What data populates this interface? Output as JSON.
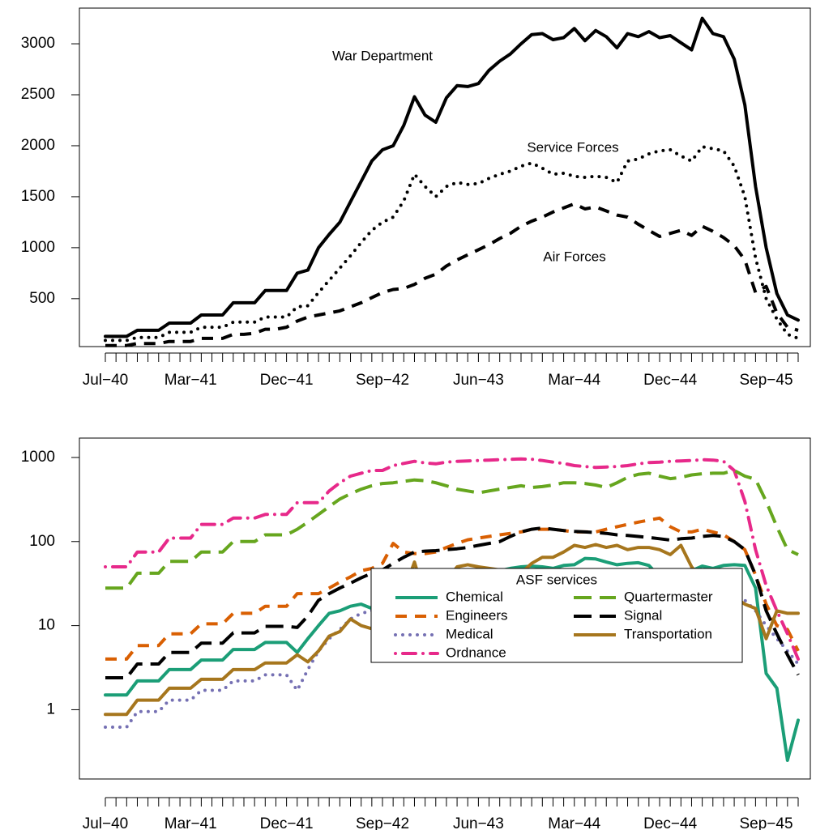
{
  "chart_data": [
    {
      "type": "line",
      "categories": [
        "Jul−40",
        null,
        null,
        null,
        null,
        null,
        null,
        null,
        "Mar−41",
        null,
        null,
        null,
        null,
        null,
        null,
        null,
        null,
        "Dec−41",
        null,
        null,
        null,
        null,
        null,
        null,
        null,
        null,
        "Sep−42",
        null,
        null,
        null,
        null,
        null,
        null,
        null,
        null,
        "Jun−43",
        null,
        null,
        null,
        null,
        null,
        null,
        null,
        null,
        "Mar−44",
        null,
        null,
        null,
        null,
        null,
        null,
        null,
        null,
        "Dec−44",
        null,
        null,
        null,
        null,
        null,
        null,
        null,
        null,
        "Sep−45",
        null,
        null,
        null
      ],
      "ylim": [
        30,
        3350
      ],
      "yticks": [
        500,
        1000,
        1500,
        2000,
        2500,
        3000
      ],
      "annotations": [
        "War Department",
        "Service Forces",
        "Air Forces"
      ],
      "series": [
        {
          "name": "War Department",
          "color": "#000000",
          "linestyle": "solid",
          "values": [
            130,
            130,
            130,
            190,
            190,
            190,
            260,
            260,
            260,
            340,
            340,
            340,
            460,
            460,
            460,
            580,
            580,
            580,
            750,
            780,
            1000,
            1130,
            1250,
            1450,
            1650,
            1850,
            1960,
            2000,
            2200,
            2480,
            2300,
            2230,
            2470,
            2590,
            2580,
            2610,
            2740,
            2830,
            2900,
            3000,
            3090,
            3100,
            3040,
            3060,
            3150,
            3030,
            3130,
            3070,
            2960,
            3100,
            3070,
            3120,
            3060,
            3080,
            3010,
            2940,
            3250,
            3100,
            3070,
            2850,
            2400,
            1600,
            1000,
            550,
            340,
            290
          ]
        },
        {
          "name": "Service Forces",
          "color": "#000000",
          "linestyle": "dotted",
          "values": [
            90,
            90,
            90,
            120,
            120,
            120,
            170,
            170,
            170,
            220,
            220,
            220,
            270,
            270,
            270,
            320,
            320,
            320,
            420,
            430,
            560,
            680,
            800,
            920,
            1050,
            1170,
            1250,
            1300,
            1460,
            1720,
            1600,
            1500,
            1600,
            1640,
            1620,
            1630,
            1680,
            1720,
            1750,
            1800,
            1830,
            1780,
            1720,
            1730,
            1700,
            1690,
            1700,
            1690,
            1640,
            1850,
            1870,
            1920,
            1950,
            1960,
            1900,
            1850,
            1990,
            1970,
            1950,
            1800,
            1500,
            900,
            500,
            300,
            150,
            110
          ]
        },
        {
          "name": "Air Forces",
          "color": "#000000",
          "linestyle": "dashed",
          "values": [
            40,
            40,
            40,
            60,
            60,
            60,
            80,
            80,
            80,
            110,
            110,
            110,
            150,
            150,
            160,
            200,
            200,
            220,
            280,
            320,
            340,
            360,
            380,
            420,
            460,
            510,
            560,
            590,
            600,
            640,
            700,
            740,
            820,
            880,
            930,
            980,
            1030,
            1090,
            1140,
            1210,
            1260,
            1300,
            1350,
            1390,
            1430,
            1380,
            1400,
            1360,
            1320,
            1300,
            1230,
            1170,
            1110,
            1140,
            1170,
            1120,
            1210,
            1160,
            1100,
            1020,
            880,
            560,
            620,
            360,
            220,
            190
          ]
        }
      ]
    },
    {
      "type": "line",
      "log_scale": true,
      "categories": [
        "Jul−40",
        null,
        null,
        null,
        null,
        null,
        null,
        null,
        "Mar−41",
        null,
        null,
        null,
        null,
        null,
        null,
        null,
        null,
        "Dec−41",
        null,
        null,
        null,
        null,
        null,
        null,
        null,
        null,
        "Sep−42",
        null,
        null,
        null,
        null,
        null,
        null,
        null,
        null,
        "Jun−43",
        null,
        null,
        null,
        null,
        null,
        null,
        null,
        null,
        "Mar−44",
        null,
        null,
        null,
        null,
        null,
        null,
        null,
        null,
        "Dec−44",
        null,
        null,
        null,
        null,
        null,
        null,
        null,
        null,
        "Sep−45",
        null,
        null,
        null
      ],
      "ylim": [
        0.15,
        1700
      ],
      "yticks": [
        1,
        10,
        100,
        1000
      ],
      "legend_title": "ASF services",
      "legend": "bottom-right",
      "series": [
        {
          "name": "Chemical",
          "color": "#1b9e77",
          "linestyle": "solid",
          "values": [
            1.5,
            1.5,
            1.5,
            2.2,
            2.2,
            2.2,
            3.0,
            3.0,
            3.0,
            3.9,
            3.9,
            3.9,
            5.2,
            5.2,
            5.2,
            6.3,
            6.3,
            6.3,
            4.8,
            7,
            10,
            14,
            15,
            17,
            18,
            16,
            21,
            22,
            23,
            34,
            31,
            31,
            33,
            34,
            32,
            27,
            34,
            45,
            48,
            50,
            51,
            50,
            48,
            52,
            53,
            63,
            62,
            57,
            53,
            55,
            56,
            52,
            38,
            43,
            46,
            45,
            51,
            48,
            52,
            53,
            52,
            28,
            2.7,
            1.8,
            0.25,
            0.75
          ]
        },
        {
          "name": "Engineers",
          "color": "#d95f02",
          "linestyle": "dashed",
          "values": [
            4,
            4,
            4,
            5.8,
            5.8,
            5.8,
            8,
            8,
            8,
            10.5,
            10.5,
            10.5,
            14,
            14,
            14,
            17,
            17,
            17,
            24,
            24,
            24,
            28,
            33,
            38,
            45,
            48,
            55,
            95,
            75,
            72,
            72,
            75,
            85,
            95,
            105,
            110,
            115,
            120,
            125,
            130,
            140,
            140,
            140,
            135,
            130,
            130,
            130,
            140,
            150,
            160,
            170,
            180,
            190,
            150,
            130,
            130,
            140,
            130,
            120,
            100,
            80,
            40,
            18,
            10,
            9,
            5
          ]
        },
        {
          "name": "Medical",
          "color": "#7570b3",
          "linestyle": "dotted",
          "values": [
            0.62,
            0.62,
            0.62,
            0.95,
            0.95,
            0.95,
            1.3,
            1.3,
            1.3,
            1.7,
            1.7,
            1.7,
            2.2,
            2.2,
            2.2,
            2.6,
            2.6,
            2.6,
            1.7,
            3,
            5,
            7,
            9,
            12,
            14,
            15,
            19,
            21,
            24,
            25,
            28,
            30,
            33,
            28,
            25,
            22,
            20,
            18,
            17,
            16,
            20,
            22,
            18,
            15,
            14,
            13,
            12,
            11.5,
            11,
            11.5,
            12,
            13,
            14,
            15,
            16,
            18,
            20,
            24,
            26,
            23,
            20,
            15,
            10,
            7,
            5,
            3.5
          ]
        },
        {
          "name": "Ordnance",
          "color": "#e7298a",
          "linestyle": "dotdash",
          "values": [
            50,
            50,
            50,
            75,
            75,
            75,
            110,
            110,
            110,
            160,
            160,
            160,
            190,
            190,
            190,
            210,
            210,
            210,
            290,
            290,
            290,
            400,
            500,
            600,
            650,
            700,
            700,
            800,
            850,
            900,
            860,
            840,
            880,
            900,
            910,
            920,
            930,
            940,
            950,
            960,
            950,
            920,
            880,
            850,
            800,
            780,
            760,
            770,
            780,
            800,
            840,
            870,
            880,
            900,
            910,
            920,
            940,
            930,
            900,
            700,
            300,
            80,
            30,
            15,
            8,
            4
          ]
        },
        {
          "name": "Quartermaster",
          "color": "#66a61e",
          "linestyle": "longdash",
          "values": [
            28,
            28,
            28,
            42,
            42,
            42,
            58,
            58,
            58,
            75,
            75,
            75,
            100,
            100,
            100,
            120,
            120,
            120,
            140,
            170,
            210,
            260,
            320,
            370,
            420,
            460,
            490,
            500,
            520,
            540,
            530,
            500,
            460,
            420,
            400,
            380,
            400,
            420,
            440,
            460,
            440,
            450,
            470,
            500,
            500,
            490,
            470,
            440,
            500,
            580,
            630,
            650,
            600,
            560,
            580,
            620,
            640,
            650,
            650,
            700,
            600,
            550,
            300,
            150,
            80,
            70
          ]
        },
        {
          "name": "Signal",
          "color": "#000000",
          "linestyle": "longdash",
          "values": [
            2.4,
            2.4,
            2.4,
            3.5,
            3.5,
            3.5,
            4.8,
            4.8,
            4.8,
            6.2,
            6.2,
            6.2,
            8.2,
            8.2,
            8.2,
            9.8,
            9.8,
            9.8,
            9.5,
            13,
            20,
            24,
            28,
            32,
            37,
            42,
            46,
            55,
            65,
            75,
            77,
            78,
            80,
            82,
            85,
            90,
            95,
            100,
            115,
            130,
            140,
            145,
            140,
            135,
            132,
            130,
            128,
            125,
            120,
            118,
            115,
            112,
            108,
            104,
            108,
            110,
            115,
            118,
            115,
            100,
            80,
            40,
            15,
            8,
            4.5,
            2.6
          ]
        },
        {
          "name": "Transportation",
          "color": "#a6761d",
          "linestyle": "solid",
          "values": [
            0.88,
            0.88,
            0.88,
            1.3,
            1.3,
            1.3,
            1.8,
            1.8,
            1.8,
            2.3,
            2.3,
            2.3,
            3.0,
            3.0,
            3.0,
            3.6,
            3.6,
            3.6,
            4.5,
            3.7,
            5,
            7.5,
            8.5,
            12,
            10,
            9.2,
            12,
            15,
            25,
            57,
            21,
            28,
            35,
            50,
            53,
            50,
            48,
            46,
            45,
            42,
            55,
            65,
            65,
            75,
            90,
            85,
            92,
            85,
            90,
            80,
            85,
            85,
            80,
            70,
            90,
            50,
            35,
            30,
            26,
            22,
            18,
            16,
            7,
            15,
            14,
            14
          ]
        }
      ]
    }
  ]
}
